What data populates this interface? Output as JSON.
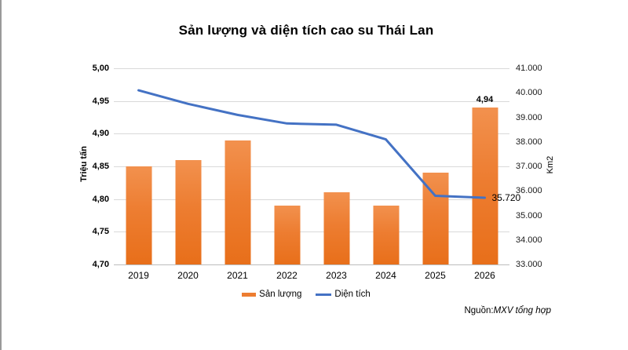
{
  "title": "Sản lượng và diện tích cao su Thái Lan",
  "source": {
    "prefix": "Nguồn:",
    "text": "MXV tổng hợp"
  },
  "colors": {
    "bar": "#ed7d31",
    "line": "#4472c4",
    "grid": "#d9d9d9"
  },
  "chart_data": {
    "type": "bar",
    "subtype": "combo bar + line, dual axis",
    "categories": [
      "2019",
      "2020",
      "2021",
      "2022",
      "2023",
      "2024",
      "2025",
      "2026"
    ],
    "series": [
      {
        "name": "Sản lượng",
        "type": "bar",
        "axis": "left",
        "unit": "Triệu tấn",
        "color": "#ed7d31",
        "values": [
          4.85,
          4.86,
          4.89,
          4.79,
          4.81,
          4.79,
          4.84,
          4.94
        ]
      },
      {
        "name": "Diện tích",
        "type": "line",
        "axis": "right",
        "unit": "Km2",
        "color": "#4472c4",
        "values": [
          40100,
          39550,
          39100,
          38750,
          38700,
          38100,
          35800,
          35720
        ]
      }
    ],
    "left_axis": {
      "label": "Triệu tấn",
      "min": 4.7,
      "max": 5.0,
      "ticks": [
        "5,00",
        "4,95",
        "4,90",
        "4,85",
        "4,80",
        "4,75",
        "4,70"
      ]
    },
    "right_axis": {
      "label": "Km2",
      "min": 33000,
      "max": 41000,
      "ticks": [
        "41.000",
        "40.000",
        "39.000",
        "38.000",
        "37.000",
        "36.000",
        "35.000",
        "34.000",
        "33.000"
      ]
    },
    "annotations": [
      {
        "series": "Sản lượng",
        "category": "2026",
        "text": "4,94"
      },
      {
        "series": "Diện tích",
        "category": "2026",
        "text": "35.720"
      }
    ],
    "grid": true,
    "legend_position": "bottom"
  }
}
